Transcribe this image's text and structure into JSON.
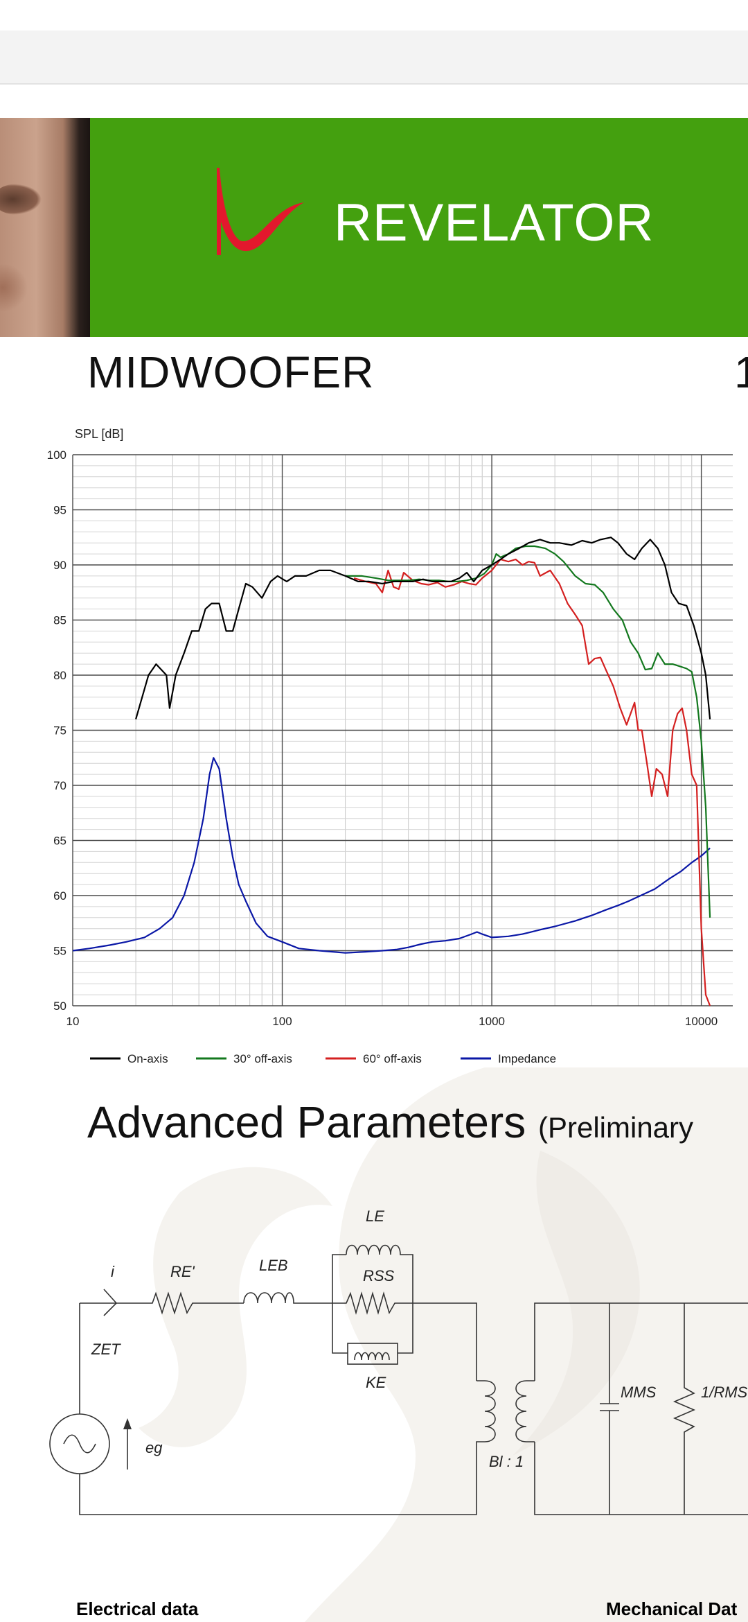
{
  "banner": {
    "brand": "REVELATOR",
    "logo": "red-swoosh-logo",
    "accent": "#44a00f",
    "logo_color": "#e3182d"
  },
  "product": {
    "title": "MIDWOOFER",
    "title_extra": "1"
  },
  "chart_data": {
    "type": "line",
    "ylabel": "SPL [dB]",
    "xscale": "log",
    "xlim": [
      10,
      10000
    ],
    "ylim": [
      50,
      100
    ],
    "x_ticks": [
      "10",
      "100",
      "1000",
      "10000"
    ],
    "y_ticks": [
      "100",
      "95",
      "90",
      "85",
      "80",
      "75",
      "70",
      "65",
      "60",
      "55",
      "50"
    ],
    "grid": true,
    "legend": "bottom",
    "series": [
      {
        "name": "On-axis",
        "color": "#000000",
        "points": [
          [
            20,
            76
          ],
          [
            23,
            80
          ],
          [
            25,
            81
          ],
          [
            28,
            80
          ],
          [
            29,
            77
          ],
          [
            31,
            80
          ],
          [
            34,
            82
          ],
          [
            37,
            84
          ],
          [
            40,
            84
          ],
          [
            43,
            86
          ],
          [
            46,
            86.5
          ],
          [
            50,
            86.5
          ],
          [
            54,
            84
          ],
          [
            58,
            84
          ],
          [
            62,
            86
          ],
          [
            67,
            88.3
          ],
          [
            72,
            88
          ],
          [
            80,
            87
          ],
          [
            88,
            88.5
          ],
          [
            95,
            89
          ],
          [
            105,
            88.5
          ],
          [
            115,
            89
          ],
          [
            130,
            89
          ],
          [
            150,
            89.5
          ],
          [
            170,
            89.5
          ],
          [
            200,
            89
          ],
          [
            230,
            88.5
          ],
          [
            260,
            88.5
          ],
          [
            300,
            88.3
          ],
          [
            340,
            88.5
          ],
          [
            380,
            88.5
          ],
          [
            420,
            88.5
          ],
          [
            470,
            88.7
          ],
          [
            520,
            88.5
          ],
          [
            580,
            88.5
          ],
          [
            640,
            88.5
          ],
          [
            700,
            88.8
          ],
          [
            760,
            89.3
          ],
          [
            820,
            88.5
          ],
          [
            900,
            89.5
          ],
          [
            1000,
            90
          ],
          [
            1100,
            90.5
          ],
          [
            1200,
            91
          ],
          [
            1350,
            91.5
          ],
          [
            1500,
            92
          ],
          [
            1700,
            92.3
          ],
          [
            1900,
            92
          ],
          [
            2100,
            92
          ],
          [
            2400,
            91.8
          ],
          [
            2700,
            92.2
          ],
          [
            3000,
            92
          ],
          [
            3300,
            92.3
          ],
          [
            3700,
            92.5
          ],
          [
            4000,
            92
          ],
          [
            4400,
            91
          ],
          [
            4800,
            90.5
          ],
          [
            5200,
            91.5
          ],
          [
            5700,
            92.3
          ],
          [
            6200,
            91.5
          ],
          [
            6700,
            90
          ],
          [
            7200,
            87.5
          ],
          [
            7800,
            86.5
          ],
          [
            8500,
            86.3
          ],
          [
            9200,
            84.5
          ],
          [
            10000,
            82
          ],
          [
            10500,
            80
          ],
          [
            11000,
            76
          ]
        ]
      },
      {
        "name": "30° off-axis",
        "color": "#13781e",
        "points": [
          [
            200,
            89
          ],
          [
            240,
            89
          ],
          [
            280,
            88.8
          ],
          [
            320,
            88.6
          ],
          [
            360,
            88.6
          ],
          [
            400,
            88.6
          ],
          [
            450,
            88.7
          ],
          [
            500,
            88.6
          ],
          [
            560,
            88.6
          ],
          [
            620,
            88.5
          ],
          [
            690,
            88.5
          ],
          [
            760,
            88.6
          ],
          [
            840,
            88.8
          ],
          [
            920,
            89.2
          ],
          [
            1000,
            90
          ],
          [
            1050,
            91
          ],
          [
            1100,
            90.7
          ],
          [
            1200,
            91
          ],
          [
            1300,
            91.5
          ],
          [
            1450,
            91.7
          ],
          [
            1600,
            91.7
          ],
          [
            1800,
            91.5
          ],
          [
            2000,
            91
          ],
          [
            2200,
            90.3
          ],
          [
            2500,
            89
          ],
          [
            2800,
            88.3
          ],
          [
            3100,
            88.2
          ],
          [
            3400,
            87.5
          ],
          [
            3800,
            86
          ],
          [
            4200,
            85
          ],
          [
            4600,
            83
          ],
          [
            5000,
            82
          ],
          [
            5400,
            80.5
          ],
          [
            5800,
            80.6
          ],
          [
            6200,
            82
          ],
          [
            6700,
            81
          ],
          [
            7300,
            81
          ],
          [
            7900,
            80.8
          ],
          [
            8500,
            80.6
          ],
          [
            9000,
            80.3
          ],
          [
            9500,
            78
          ],
          [
            10000,
            74
          ],
          [
            10500,
            68
          ],
          [
            11000,
            58
          ]
        ]
      },
      {
        "name": "60° off-axis",
        "color": "#d42020",
        "points": [
          [
            220,
            88.8
          ],
          [
            250,
            88.5
          ],
          [
            280,
            88.3
          ],
          [
            300,
            87.5
          ],
          [
            320,
            89.5
          ],
          [
            340,
            88
          ],
          [
            360,
            87.8
          ],
          [
            380,
            89.3
          ],
          [
            420,
            88.6
          ],
          [
            460,
            88.3
          ],
          [
            500,
            88.2
          ],
          [
            550,
            88.4
          ],
          [
            600,
            88
          ],
          [
            660,
            88.2
          ],
          [
            720,
            88.5
          ],
          [
            780,
            88.3
          ],
          [
            840,
            88.2
          ],
          [
            900,
            88.8
          ],
          [
            1000,
            89.5
          ],
          [
            1100,
            90.5
          ],
          [
            1200,
            90.3
          ],
          [
            1300,
            90.5
          ],
          [
            1400,
            90
          ],
          [
            1500,
            90.3
          ],
          [
            1600,
            90.2
          ],
          [
            1700,
            89
          ],
          [
            1900,
            89.5
          ],
          [
            2100,
            88.3
          ],
          [
            2300,
            86.5
          ],
          [
            2500,
            85.5
          ],
          [
            2700,
            84.5
          ],
          [
            2900,
            81
          ],
          [
            3100,
            81.5
          ],
          [
            3300,
            81.6
          ],
          [
            3500,
            80.5
          ],
          [
            3800,
            79
          ],
          [
            4100,
            77
          ],
          [
            4400,
            75.5
          ],
          [
            4800,
            77.5
          ],
          [
            5000,
            75
          ],
          [
            5200,
            75
          ],
          [
            5500,
            72
          ],
          [
            5800,
            69
          ],
          [
            6100,
            71.5
          ],
          [
            6500,
            71
          ],
          [
            6900,
            69
          ],
          [
            7300,
            75
          ],
          [
            7700,
            76.5
          ],
          [
            8100,
            77
          ],
          [
            8500,
            75
          ],
          [
            9000,
            71
          ],
          [
            9500,
            70
          ],
          [
            10000,
            57
          ],
          [
            10500,
            51
          ],
          [
            11000,
            50
          ]
        ]
      },
      {
        "name": "Impedance",
        "color": "#0a17a6",
        "points": [
          [
            10,
            55
          ],
          [
            12,
            55.2
          ],
          [
            15,
            55.5
          ],
          [
            18,
            55.8
          ],
          [
            22,
            56.2
          ],
          [
            26,
            57
          ],
          [
            30,
            58
          ],
          [
            34,
            60
          ],
          [
            38,
            63
          ],
          [
            42,
            67
          ],
          [
            45,
            71
          ],
          [
            47,
            72.5
          ],
          [
            50,
            71.5
          ],
          [
            54,
            67
          ],
          [
            58,
            63.5
          ],
          [
            62,
            61
          ],
          [
            67,
            59.5
          ],
          [
            75,
            57.5
          ],
          [
            85,
            56.3
          ],
          [
            100,
            55.8
          ],
          [
            120,
            55.2
          ],
          [
            150,
            55
          ],
          [
            200,
            54.8
          ],
          [
            250,
            54.9
          ],
          [
            300,
            55
          ],
          [
            350,
            55.1
          ],
          [
            400,
            55.3
          ],
          [
            460,
            55.6
          ],
          [
            520,
            55.8
          ],
          [
            600,
            55.9
          ],
          [
            700,
            56.1
          ],
          [
            800,
            56.5
          ],
          [
            850,
            56.7
          ],
          [
            900,
            56.5
          ],
          [
            1000,
            56.2
          ],
          [
            1200,
            56.3
          ],
          [
            1400,
            56.5
          ],
          [
            1700,
            56.9
          ],
          [
            2000,
            57.2
          ],
          [
            2500,
            57.7
          ],
          [
            3000,
            58.2
          ],
          [
            3500,
            58.7
          ],
          [
            4000,
            59.1
          ],
          [
            4500,
            59.5
          ],
          [
            5000,
            59.9
          ],
          [
            6000,
            60.6
          ],
          [
            7000,
            61.5
          ],
          [
            8000,
            62.2
          ],
          [
            9000,
            63
          ],
          [
            10000,
            63.6
          ],
          [
            11000,
            64.3
          ]
        ]
      }
    ]
  },
  "advanced": {
    "title": "Advanced Parameters",
    "subtitle": "(Preliminary"
  },
  "circuit": {
    "labels": {
      "i": "i",
      "re": "RE'",
      "leb": "LEB",
      "le": "LE",
      "rss": "RSS",
      "ke": "KE",
      "zet": "ZET",
      "eg": "eg",
      "bl": "Bl : 1",
      "mms": "MMS",
      "rms": "1/RMS"
    }
  },
  "sections": {
    "electrical": "Electrical data",
    "mechanical": "Mechanical Dat"
  }
}
